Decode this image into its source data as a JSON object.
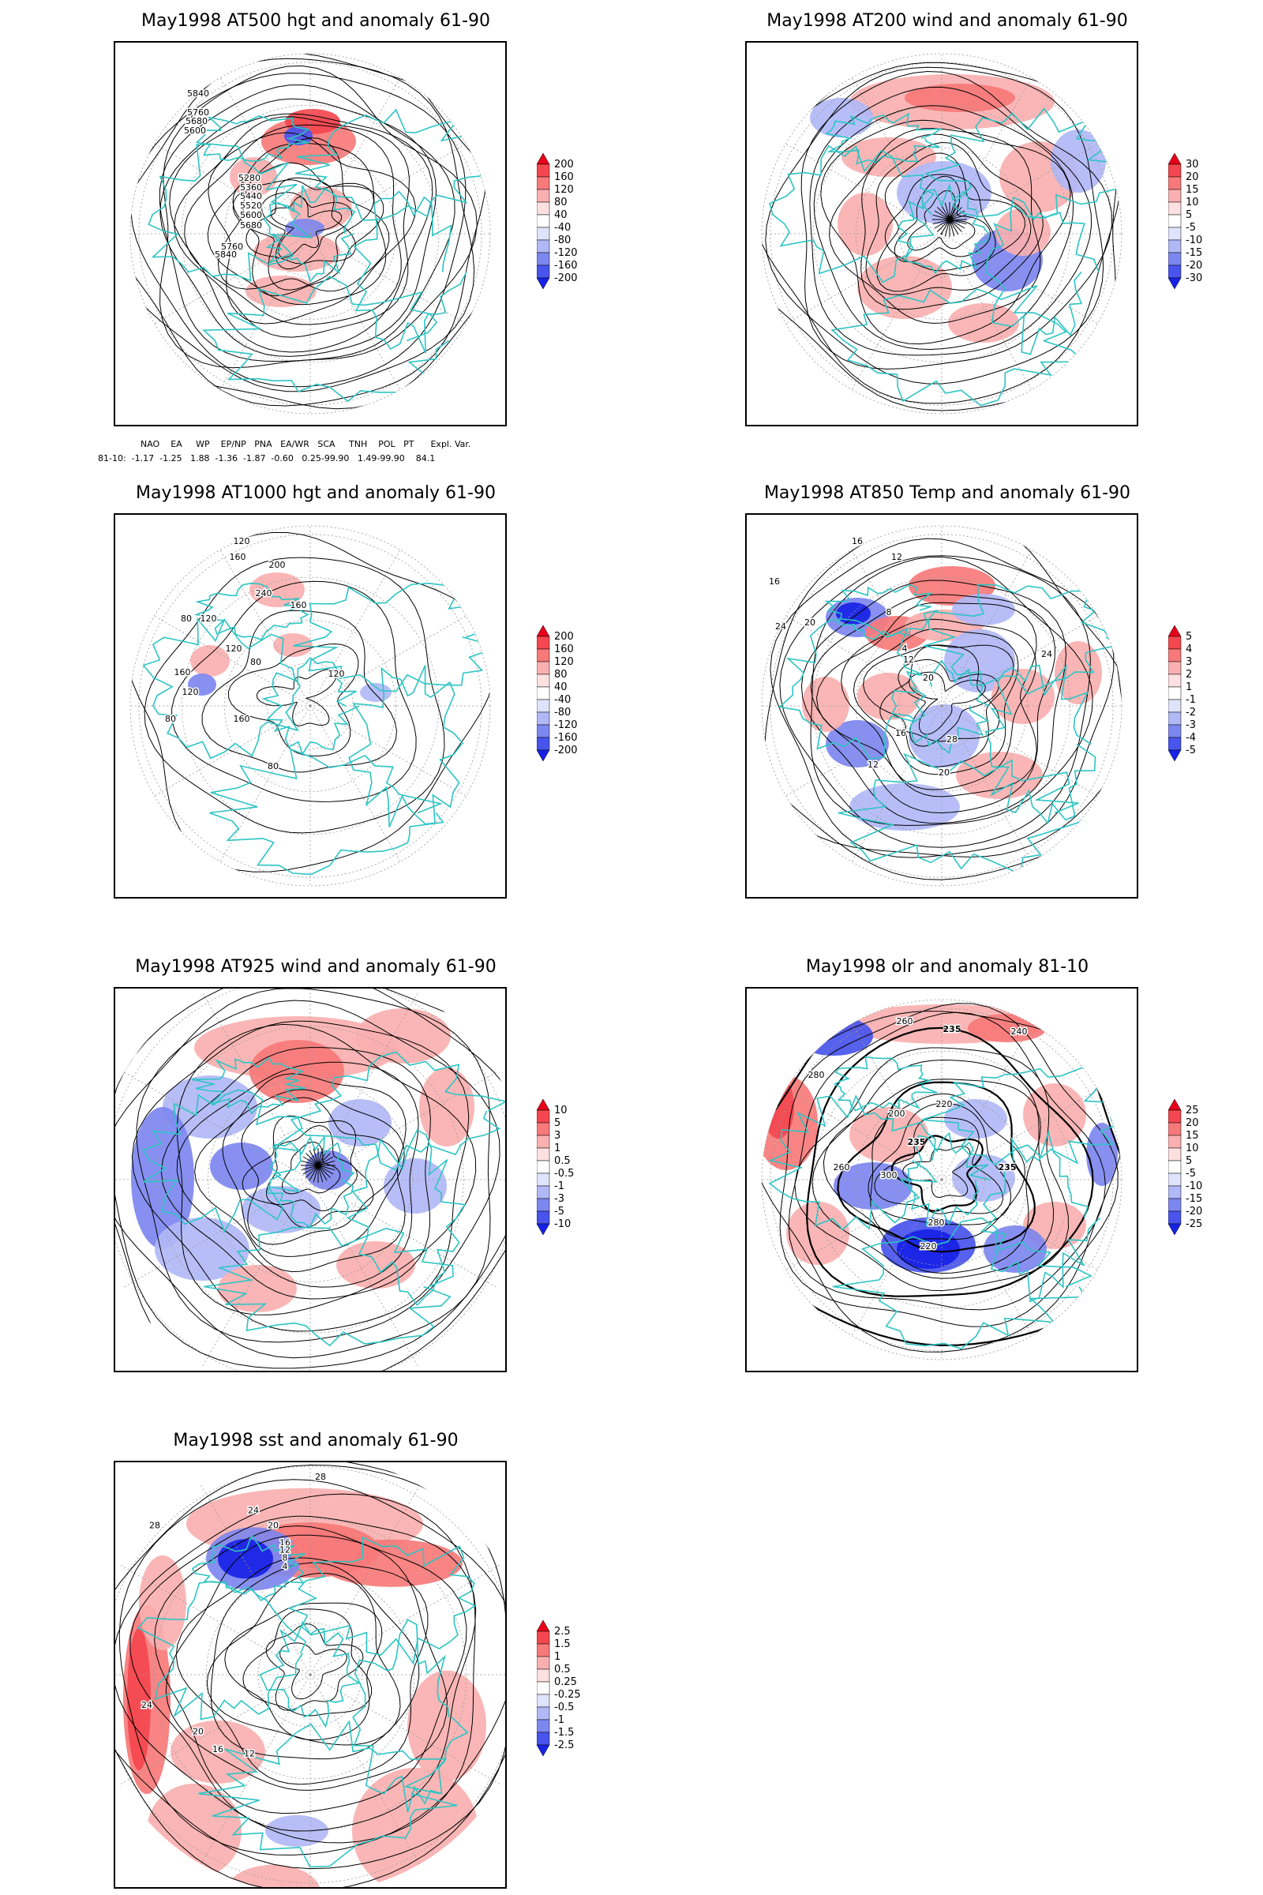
{
  "panels": [
    {
      "id": "p500",
      "title": "May1998 AT500 hgt and anomaly 61-90",
      "colorbar": [
        "200",
        "160",
        "120",
        "80",
        "40",
        "-40",
        "-80",
        "-120",
        "-160",
        "-200"
      ],
      "contour_labels": [
        "5840",
        "5760",
        "5680",
        "5600",
        "5280",
        "5360",
        "5440",
        "5520",
        "5600",
        "5680",
        "5760",
        "5840"
      ]
    },
    {
      "id": "p200",
      "title": "May1998 AT200 wind and anomaly 61-90",
      "colorbar": [
        "30",
        "20",
        "15",
        "10",
        "5",
        "-5",
        "-10",
        "-15",
        "-20",
        "-30"
      ],
      "contour_labels": []
    },
    {
      "id": "p1000",
      "title": "May1998 AT1000 hgt and anomaly 61-90",
      "colorbar": [
        "200",
        "160",
        "120",
        "80",
        "40",
        "-40",
        "-80",
        "-120",
        "-160",
        "-200"
      ],
      "contour_labels": [
        "120",
        "160",
        "200",
        "240",
        "120",
        "80",
        "160",
        "120",
        "80",
        "160",
        "120",
        "80",
        "160",
        "120",
        "80"
      ]
    },
    {
      "id": "p850",
      "title": "May1998 AT850 Temp and anomaly 61-90",
      "colorbar": [
        "5",
        "4",
        "3",
        "2",
        "1",
        "-1",
        "-2",
        "-3",
        "-4",
        "-5"
      ],
      "contour_labels": [
        "16",
        "12",
        "16",
        "20",
        "24",
        "8",
        "4",
        "12",
        "20",
        "24",
        "28",
        "16",
        "12",
        "20"
      ]
    },
    {
      "id": "p925",
      "title": "May1998 AT925 wind and anomaly 61-90",
      "colorbar": [
        "10",
        "5",
        "3",
        "1",
        "0.5",
        "-0.5",
        "-1",
        "-3",
        "-5",
        "-10"
      ],
      "contour_labels": []
    },
    {
      "id": "polr",
      "title": "May1998 olr and anomaly 81-10",
      "colorbar": [
        "25",
        "20",
        "15",
        "10",
        "5",
        "-5",
        "-10",
        "-15",
        "-20",
        "-25"
      ],
      "contour_labels": [
        "260",
        "235",
        "240",
        "280",
        "220",
        "200",
        "235",
        "260",
        "300",
        "280",
        "235",
        "220"
      ]
    },
    {
      "id": "psst",
      "title": "May1998 sst and anomaly 61-90",
      "colorbar": [
        "2.5",
        "1.5",
        "1",
        "0.5",
        "0.25",
        "-0.25",
        "-0.5",
        "-1",
        "-1.5",
        "-2.5"
      ],
      "contour_labels": [
        "28",
        "24",
        "20",
        "16",
        "12",
        "8",
        "4",
        "28",
        "24",
        "20",
        "16",
        "12"
      ]
    }
  ],
  "teleconnection": {
    "header": "NAO    EA     WP    EP/NP   PNA   EA/WR   SCA     TNH    POL   PT      Expl. Var.",
    "values": "81-10:  -1.17  -1.25   1.88  -1.36  -1.87  -0.60   0.25-99.90   1.49-99.90    84.1"
  },
  "colors": {
    "coast": "#2ec4c4",
    "contour": "#000000",
    "grid": "#999999",
    "scale": [
      "#e8001a",
      "#f4474f",
      "#f7797a",
      "#fab0b0",
      "#fde0e0",
      "#ffffff",
      "#dfe3fb",
      "#b1b8f6",
      "#7d87f0",
      "#4854ec",
      "#1722e6"
    ]
  }
}
